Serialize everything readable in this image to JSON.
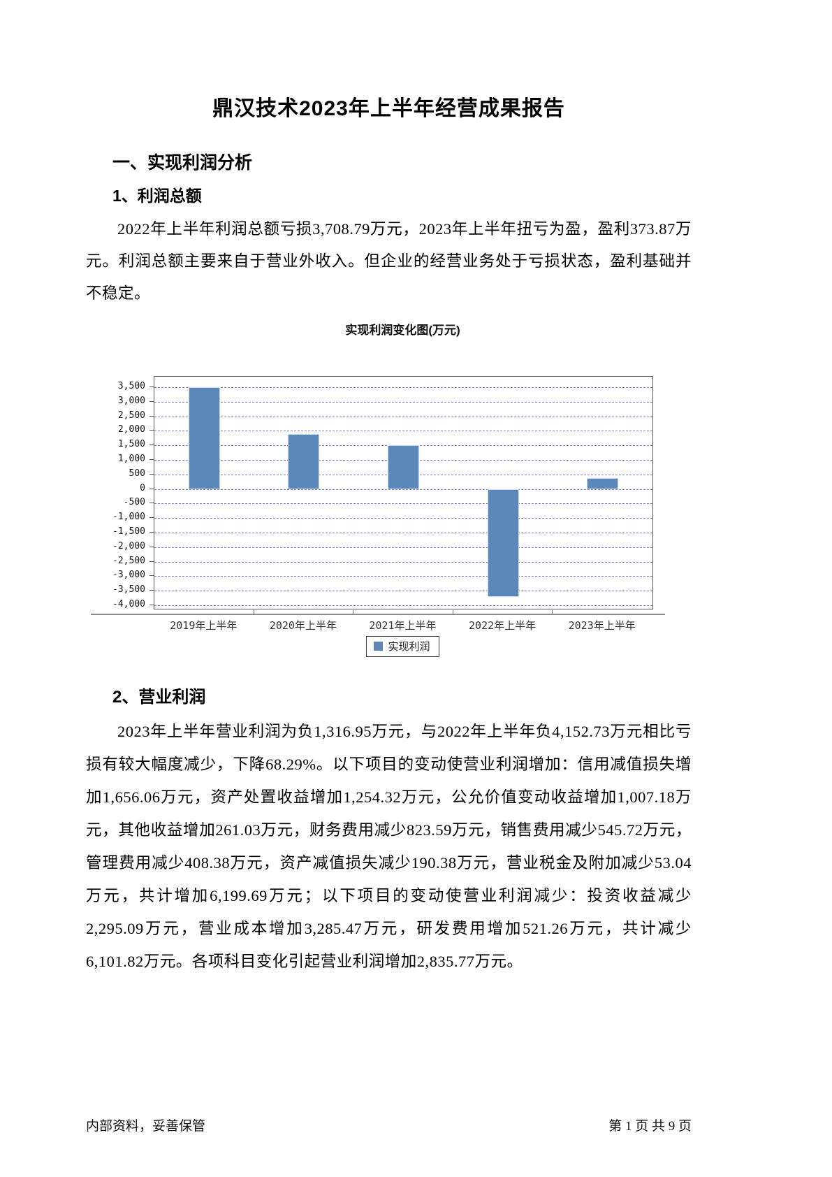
{
  "doc": {
    "title": "鼎汉技术2023年上半年经营成果报告",
    "section1_heading": "一、实现利润分析",
    "sub1_heading": "1、利润总额",
    "sub1_paragraph": "2022年上半年利润总额亏损3,708.79万元，2023年上半年扭亏为盈，盈利373.87万元。利润总额主要来自于营业外收入。但企业的经营业务处于亏损状态，盈利基础并不稳定。",
    "sub2_heading": "2、营业利润",
    "sub2_paragraph": "2023年上半年营业利润为负1,316.95万元，与2022年上半年负4,152.73万元相比亏损有较大幅度减少，下降68.29%。以下项目的变动使营业利润增加：信用减值损失增加1,656.06万元，资产处置收益增加1,254.32万元，公允价值变动收益增加1,007.18万元，其他收益增加261.03万元，财务费用减少823.59万元，销售费用减少545.72万元，管理费用减少408.38万元，资产减值损失减少190.38万元，营业税金及附加减少53.04万元，共计增加6,199.69万元；以下项目的变动使营业利润减少：投资收益减少2,295.09万元，营业成本增加3,285.47万元，研发费用增加521.26万元，共计减少6,101.82万元。各项科目变化引起营业利润增加2,835.77万元。",
    "footer_left": "内部资料，妥善保管",
    "footer_right": "第 1 页  共 9 页"
  },
  "chart_data": {
    "type": "bar",
    "title": "实现利润变化图(万元)",
    "categories": [
      "2019年上半年",
      "2020年上半年",
      "2021年上半年",
      "2022年上半年",
      "2023年上半年"
    ],
    "series": [
      {
        "name": "实现利润",
        "values": [
          3500,
          1900,
          1500,
          -3708.79,
          373.87
        ]
      }
    ],
    "ylabel": "",
    "xlabel": "",
    "ytick_values": [
      3500,
      3000,
      2500,
      2000,
      1500,
      1000,
      500,
      0,
      -500,
      -1000,
      -1500,
      -2000,
      -2500,
      -3000,
      -3500,
      -4000
    ],
    "ytick_labels": [
      "3,500",
      "3,000",
      "2,500",
      "2,000",
      "1,500",
      "1,000",
      "500",
      "0",
      "-500",
      "-1,000",
      "-1,500",
      "-2,000",
      "-2,500",
      "-3,000",
      "-3,500",
      "-4,000"
    ],
    "ylim": [
      -4120,
      3860
    ],
    "grid": "dashed-horizontal",
    "legend_position": "bottom",
    "colors": {
      "bar": "#5b88b8",
      "bar_border": "#c9d9ec",
      "grid": "#7b7be0",
      "plot_border": "#595959",
      "axis": "#8c8c8c"
    }
  }
}
